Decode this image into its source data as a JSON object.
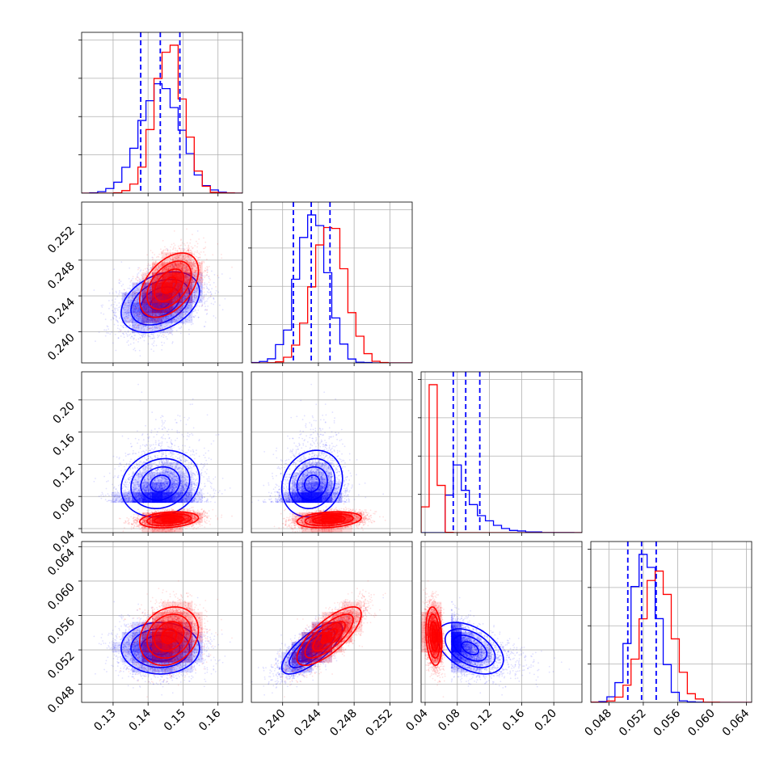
{
  "chart_data": {
    "type": "corner",
    "grid": true,
    "parameters": [
      {
        "ticks": [
          0.13,
          0.14,
          0.15,
          0.16
        ],
        "tick_labels": [
          "0.13",
          "0.14",
          "0.15",
          "0.16"
        ],
        "range": [
          0.121,
          0.167
        ]
      },
      {
        "ticks": [
          0.24,
          0.244,
          0.248,
          0.252
        ],
        "tick_labels": [
          "0.240",
          "0.244",
          "0.248",
          "0.252"
        ],
        "range": [
          0.2365,
          0.2545
        ]
      },
      {
        "ticks": [
          0.04,
          0.08,
          0.12,
          0.16,
          0.2
        ],
        "tick_labels": [
          "0.04",
          "0.08",
          "0.12",
          "0.16",
          "0.20"
        ],
        "range": [
          0.035,
          0.235
        ]
      },
      {
        "ticks": [
          0.048,
          0.052,
          0.056,
          0.06,
          0.064
        ],
        "tick_labels": [
          "0.048",
          "0.052",
          "0.056",
          "0.060",
          "0.064"
        ],
        "range": [
          0.0459,
          0.0646
        ]
      }
    ],
    "series": [
      {
        "color": "#0000ff",
        "mean": [
          0.1435,
          0.2433,
          0.092,
          0.0522
        ],
        "sd": [
          0.0056,
          0.0017,
          0.018,
          0.0015
        ],
        "corr": [
          [
            1,
            0.35,
            0.15,
            0.0
          ],
          [
            0.35,
            1,
            0.15,
            0.75
          ],
          [
            0.15,
            0.15,
            1,
            -0.45
          ],
          [
            0.0,
            0.75,
            -0.45,
            1
          ]
        ],
        "quantile_lines": [
          [
            0.1379,
            0.1435,
            0.1491
          ],
          [
            0.2412,
            0.2432,
            0.2453
          ],
          [
            0.075,
            0.0905,
            0.108
          ],
          [
            0.0502,
            0.0518,
            0.0535
          ]
        ]
      },
      {
        "color": "#ff0000",
        "mean": [
          0.146,
          0.2452,
          0.051,
          0.0536
        ],
        "sd": [
          0.0042,
          0.0018,
          0.005,
          0.0017
        ],
        "corr": [
          [
            1,
            0.45,
            0.25,
            0.2
          ],
          [
            0.45,
            1,
            0.25,
            0.75
          ],
          [
            0.25,
            0.25,
            1,
            -0.2
          ],
          [
            0.2,
            0.75,
            -0.2,
            1
          ]
        ]
      }
    ]
  }
}
